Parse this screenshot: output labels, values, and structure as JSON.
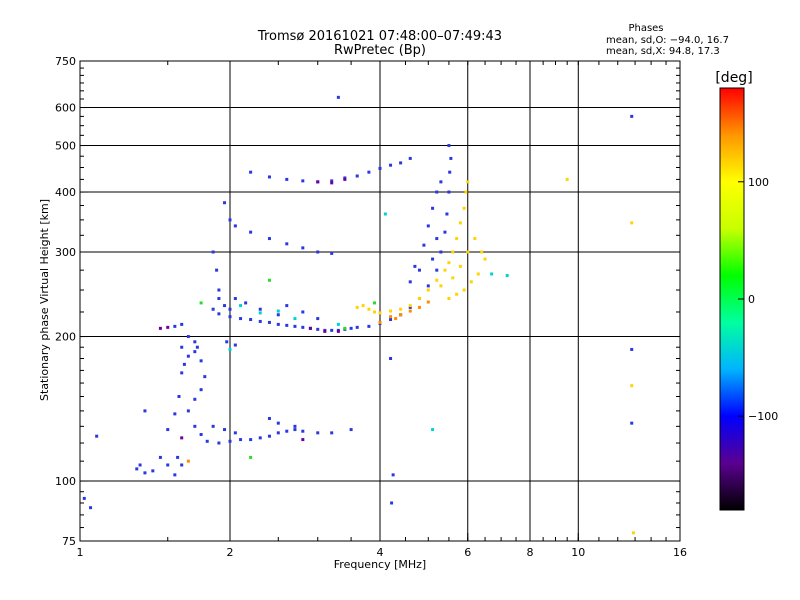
{
  "chart_data": {
    "type": "scatter",
    "title": "Tromsø 20161021 07:48:00–07:49:43",
    "subtitle": "RwPretec (Bp)",
    "xlabel": "Frequency [MHz]",
    "ylabel": "Stationary phase Virtual Height [km]",
    "x_scale": "log",
    "y_scale": "log",
    "xlim": [
      1,
      16
    ],
    "ylim": [
      75,
      750
    ],
    "x_ticks": [
      1,
      2,
      4,
      6,
      8,
      10,
      16
    ],
    "x_tick_labels": [
      "1",
      "2",
      "4",
      "6",
      "8",
      "10",
      "16"
    ],
    "x_grid": [
      2,
      4,
      6,
      8,
      10
    ],
    "y_ticks": [
      75,
      100,
      200,
      300,
      400,
      500,
      600,
      750
    ],
    "y_tick_labels": [
      "75",
      "100",
      "200",
      "300",
      "400",
      "500",
      "600",
      "750"
    ],
    "y_grid": [
      100,
      200,
      300,
      400,
      500,
      600
    ],
    "grid": true,
    "legend": {
      "title": "Phases",
      "lines": [
        "mean, sd,O: −94.0, 16.7",
        "mean, sd,X:  94.8, 17.3"
      ],
      "position": "top-right"
    },
    "colorbar": {
      "label": "[deg]",
      "range": [
        -180,
        180
      ],
      "ticks": [
        -100,
        0,
        100
      ],
      "tick_labels": [
        "−100",
        "0",
        "100"
      ],
      "colors": [
        "#000000",
        "#5a0090",
        "#0000ff",
        "#00b4ff",
        "#00ffa0",
        "#00ff00",
        "#c8ff00",
        "#ffff00",
        "#ff9600",
        "#ff0000"
      ]
    },
    "series": [
      {
        "color": "#2a38e0",
        "points": [
          [
            1.02,
            92
          ],
          [
            1.05,
            88
          ],
          [
            1.08,
            124
          ],
          [
            1.3,
            106
          ],
          [
            1.32,
            108
          ],
          [
            1.35,
            104
          ],
          [
            1.4,
            105
          ],
          [
            1.45,
            112
          ],
          [
            1.5,
            108
          ],
          [
            1.55,
            103
          ],
          [
            1.57,
            112
          ],
          [
            1.6,
            108
          ],
          [
            1.35,
            140
          ],
          [
            1.5,
            128
          ],
          [
            1.55,
            138
          ],
          [
            1.58,
            150
          ],
          [
            1.6,
            168
          ],
          [
            1.62,
            175
          ],
          [
            1.65,
            182
          ],
          [
            1.7,
            186
          ],
          [
            1.72,
            190
          ],
          [
            1.75,
            178
          ],
          [
            1.78,
            165
          ],
          [
            1.75,
            155
          ],
          [
            1.7,
            148
          ],
          [
            1.6,
            190
          ],
          [
            1.65,
            200
          ],
          [
            1.7,
            195
          ],
          [
            1.55,
            210
          ],
          [
            1.6,
            212
          ],
          [
            1.65,
            140
          ],
          [
            1.7,
            130
          ],
          [
            1.75,
            125
          ],
          [
            1.8,
            121
          ],
          [
            1.9,
            120
          ],
          [
            2.0,
            121
          ],
          [
            2.1,
            122
          ],
          [
            2.2,
            122
          ],
          [
            2.3,
            123
          ],
          [
            2.4,
            124
          ],
          [
            2.5,
            126
          ],
          [
            2.6,
            127
          ],
          [
            2.7,
            128
          ],
          [
            2.8,
            127
          ],
          [
            3.0,
            126
          ],
          [
            3.2,
            126
          ],
          [
            3.5,
            128
          ],
          [
            1.85,
            130
          ],
          [
            1.95,
            128
          ],
          [
            2.05,
            126
          ],
          [
            2.4,
            135
          ],
          [
            2.5,
            132
          ],
          [
            2.7,
            130
          ],
          [
            1.85,
            228
          ],
          [
            1.9,
            223
          ],
          [
            2.0,
            220
          ],
          [
            2.1,
            218
          ],
          [
            2.2,
            217
          ],
          [
            2.3,
            215
          ],
          [
            2.4,
            214
          ],
          [
            2.5,
            212
          ],
          [
            2.6,
            211
          ],
          [
            2.7,
            210
          ],
          [
            2.8,
            209
          ],
          [
            2.9,
            208
          ],
          [
            3.0,
            207
          ],
          [
            3.1,
            206
          ],
          [
            3.2,
            206
          ],
          [
            3.3,
            206
          ],
          [
            3.4,
            207
          ],
          [
            3.5,
            208
          ],
          [
            3.6,
            209
          ],
          [
            3.8,
            210
          ],
          [
            4.0,
            213
          ],
          [
            4.2,
            217
          ],
          [
            4.4,
            222
          ],
          [
            4.6,
            230
          ],
          [
            4.8,
            240
          ],
          [
            5.0,
            255
          ],
          [
            5.2,
            275
          ],
          [
            5.3,
            300
          ],
          [
            5.4,
            330
          ],
          [
            5.45,
            360
          ],
          [
            5.5,
            400
          ],
          [
            5.52,
            440
          ],
          [
            5.55,
            470
          ],
          [
            5.5,
            500
          ],
          [
            1.9,
            250
          ],
          [
            1.88,
            275
          ],
          [
            1.85,
            300
          ],
          [
            1.9,
            240
          ],
          [
            1.95,
            232
          ],
          [
            2.0,
            228
          ],
          [
            2.05,
            240
          ],
          [
            2.15,
            235
          ],
          [
            2.3,
            228
          ],
          [
            2.5,
            222
          ],
          [
            2.6,
            232
          ],
          [
            2.8,
            225
          ],
          [
            3.0,
            218
          ],
          [
            1.95,
            380
          ],
          [
            2.0,
            350
          ],
          [
            2.05,
            340
          ],
          [
            2.2,
            330
          ],
          [
            2.4,
            320
          ],
          [
            2.6,
            312
          ],
          [
            2.8,
            306
          ],
          [
            3.0,
            300
          ],
          [
            3.2,
            298
          ],
          [
            2.2,
            440
          ],
          [
            2.4,
            430
          ],
          [
            2.6,
            425
          ],
          [
            2.8,
            422
          ],
          [
            3.0,
            420
          ],
          [
            3.2,
            422
          ],
          [
            3.4,
            428
          ],
          [
            3.6,
            432
          ],
          [
            3.8,
            440
          ],
          [
            4.0,
            448
          ],
          [
            4.2,
            455
          ],
          [
            4.4,
            460
          ],
          [
            4.6,
            470
          ],
          [
            3.3,
            630
          ],
          [
            1.97,
            195
          ],
          [
            2.05,
            192
          ],
          [
            4.7,
            280
          ],
          [
            4.9,
            310
          ],
          [
            5.0,
            340
          ],
          [
            5.1,
            370
          ],
          [
            5.2,
            400
          ],
          [
            5.3,
            420
          ],
          [
            4.6,
            260
          ],
          [
            4.8,
            275
          ],
          [
            5.1,
            290
          ],
          [
            5.2,
            320
          ],
          [
            4.2,
            180
          ],
          [
            4.25,
            103
          ],
          [
            4.22,
            90
          ],
          [
            12.8,
            575
          ],
          [
            12.8,
            188
          ],
          [
            12.8,
            132
          ]
        ]
      },
      {
        "color": "#ffd400",
        "points": [
          [
            3.6,
            230
          ],
          [
            3.7,
            232
          ],
          [
            3.8,
            228
          ],
          [
            3.9,
            225
          ],
          [
            4.0,
            224
          ],
          [
            4.2,
            226
          ],
          [
            4.4,
            228
          ],
          [
            4.6,
            232
          ],
          [
            4.8,
            240
          ],
          [
            5.0,
            250
          ],
          [
            5.2,
            262
          ],
          [
            5.4,
            275
          ],
          [
            5.5,
            285
          ],
          [
            5.6,
            300
          ],
          [
            5.7,
            320
          ],
          [
            5.8,
            345
          ],
          [
            5.9,
            370
          ],
          [
            5.95,
            400
          ],
          [
            6.0,
            420
          ],
          [
            6.2,
            320
          ],
          [
            6.4,
            300
          ],
          [
            6.5,
            290
          ],
          [
            6.3,
            270
          ],
          [
            6.1,
            260
          ],
          [
            5.9,
            250
          ],
          [
            5.7,
            245
          ],
          [
            5.5,
            240
          ],
          [
            5.3,
            255
          ],
          [
            5.6,
            265
          ],
          [
            5.8,
            280
          ],
          [
            6.0,
            300
          ],
          [
            9.5,
            425
          ],
          [
            12.8,
            345
          ],
          [
            12.8,
            158
          ],
          [
            12.9,
            78
          ]
        ]
      },
      {
        "color": "#ff8c00",
        "points": [
          [
            4.2,
            220
          ],
          [
            4.4,
            222
          ],
          [
            4.6,
            226
          ],
          [
            4.8,
            230
          ],
          [
            5.0,
            236
          ],
          [
            1.65,
            110
          ],
          [
            4.0,
            214
          ],
          [
            4.3,
            218
          ]
        ]
      },
      {
        "color": "#00d2d2",
        "points": [
          [
            2.1,
            232
          ],
          [
            2.3,
            224
          ],
          [
            2.5,
            226
          ],
          [
            2.7,
            218
          ],
          [
            3.3,
            212
          ],
          [
            4.1,
            360
          ],
          [
            7.2,
            268
          ],
          [
            6.7,
            270
          ],
          [
            2.0,
            188
          ],
          [
            5.1,
            128
          ]
        ]
      },
      {
        "color": "#6e00a0",
        "points": [
          [
            1.45,
            208
          ],
          [
            1.5,
            209
          ],
          [
            2.9,
            208
          ],
          [
            3.1,
            205
          ],
          [
            3.3,
            205
          ],
          [
            3.0,
            420
          ],
          [
            3.2,
            418
          ],
          [
            3.4,
            425
          ],
          [
            1.6,
            123
          ],
          [
            2.8,
            122
          ]
        ]
      },
      {
        "color": "#28dc28",
        "points": [
          [
            3.4,
            208
          ],
          [
            2.4,
            262
          ],
          [
            2.2,
            112
          ],
          [
            1.75,
            235
          ],
          [
            3.9,
            235
          ]
        ]
      }
    ]
  }
}
